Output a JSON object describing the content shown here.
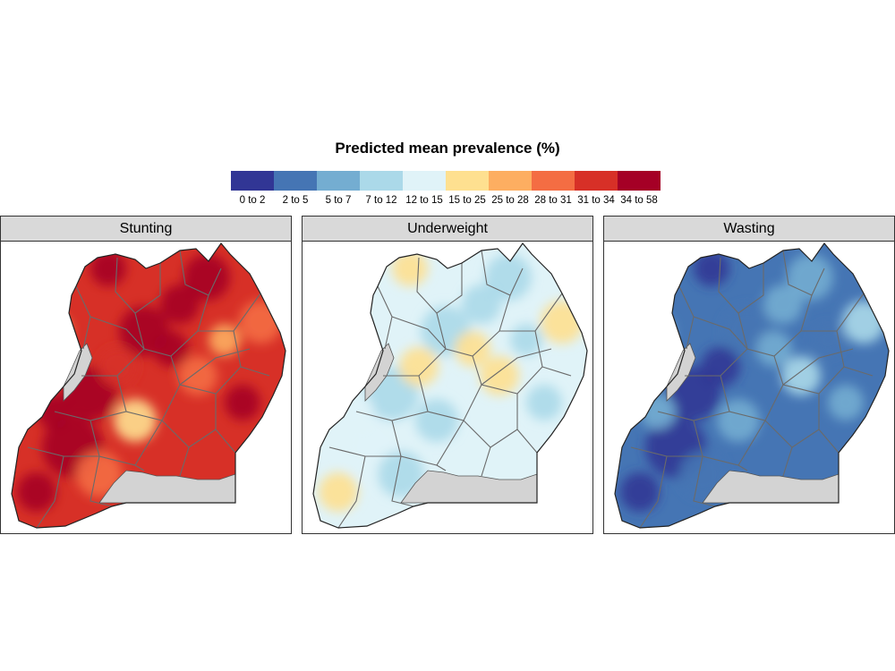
{
  "legend": {
    "title": "Predicted mean prevalence (%)",
    "classes": [
      {
        "label": "0 to 2",
        "color": "#313695"
      },
      {
        "label": "2 to 5",
        "color": "#4575b4"
      },
      {
        "label": "5 to 7",
        "color": "#74add1"
      },
      {
        "label": "7 to 12",
        "color": "#abd9e9"
      },
      {
        "label": "12 to 15",
        "color": "#e0f3f8"
      },
      {
        "label": "15 to 25",
        "color": "#fee090"
      },
      {
        "label": "25 to 28",
        "color": "#fdae61"
      },
      {
        "label": "28 to 31",
        "color": "#f46d43"
      },
      {
        "label": "31 to 34",
        "color": "#d73027"
      },
      {
        "label": "34 to 58",
        "color": "#a50026"
      }
    ]
  },
  "panels": [
    {
      "title": "Stunting",
      "base_class": 8,
      "blobs": [
        9,
        9,
        9,
        7,
        9,
        6,
        9,
        7,
        9,
        9,
        5,
        9,
        7,
        9,
        9,
        6,
        8
      ]
    },
    {
      "title": "Underweight",
      "base_class": 4,
      "blobs": [
        3,
        5,
        3,
        5,
        3,
        4,
        3,
        5,
        3,
        4,
        3,
        5,
        3,
        5,
        4,
        3,
        5
      ]
    },
    {
      "title": "Wasting",
      "base_class": 1,
      "blobs": [
        2,
        0,
        2,
        3,
        1,
        2,
        0,
        3,
        2,
        0,
        2,
        0,
        1,
        2,
        2,
        1,
        0
      ]
    }
  ],
  "colors": {
    "lake": "#d3d3d3",
    "border": "#555555",
    "strip": "#d9d9d9"
  }
}
